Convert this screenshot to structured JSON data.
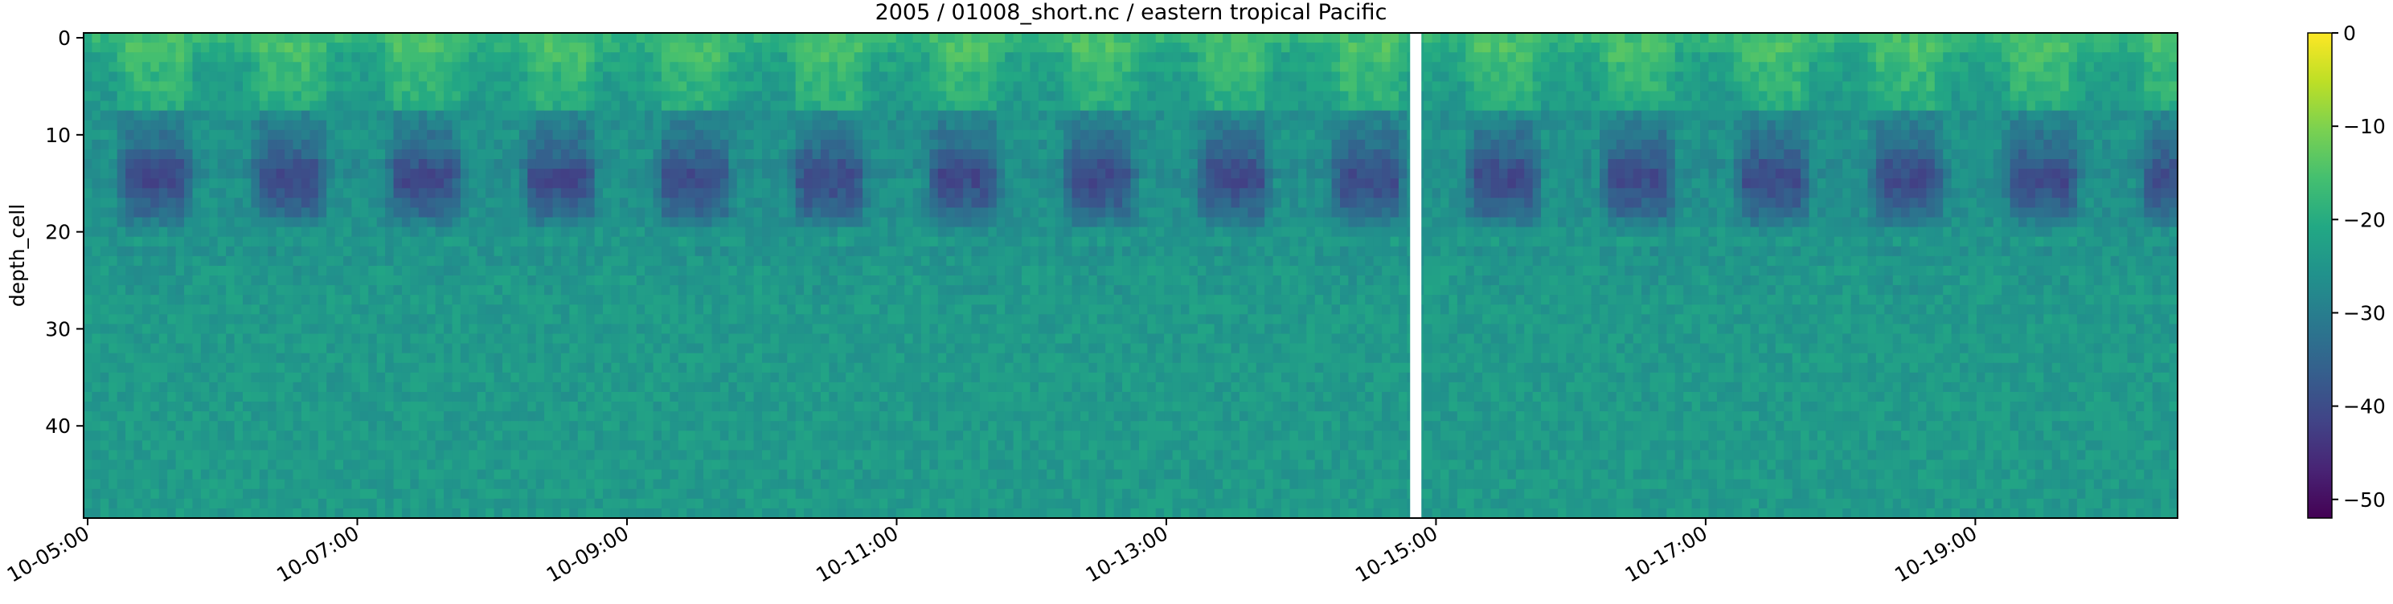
{
  "chart_data": {
    "type": "heatmap",
    "title": "2005 / 01008_short.nc / eastern tropical Pacific",
    "ylabel": "depth_cell",
    "xlabel": "",
    "x_range": [
      "10-04-23:30",
      "10-20-12:00"
    ],
    "y_range": [
      -0.5,
      49.5
    ],
    "y_inverted": true,
    "x_ticks": [
      "10-05:00",
      "10-07:00",
      "10-09:00",
      "10-11:00",
      "10-13:00",
      "10-15:00",
      "10-17:00",
      "10-19:00"
    ],
    "x_tick_days": [
      5,
      7,
      9,
      11,
      13,
      15,
      17,
      19
    ],
    "y_ticks": [
      0,
      10,
      20,
      30,
      40
    ],
    "colorbar": {
      "colormap": "viridis",
      "vmin": -52,
      "vmax": 0,
      "ticks": [
        0,
        -10,
        -20,
        -30,
        -40,
        -50
      ],
      "tick_labels": [
        "0",
        "−10",
        "−20",
        "−30",
        "−40",
        "−50"
      ]
    },
    "n_depth_cells": 50,
    "data_gap_day": 14.85,
    "description_of_values": "approximate backscatter values per depth_cell; values listed as typical depth profile (cells 0..49) for daytime and nighttime",
    "profile_day": [
      -16,
      -15,
      -16,
      -17,
      -18,
      -18,
      -19,
      -20,
      -28,
      -30,
      -32,
      -33,
      -35,
      -38,
      -40,
      -40,
      -38,
      -36,
      -34,
      -30,
      -26,
      -24,
      -26,
      -25,
      -25,
      -25,
      -25,
      -24,
      -24,
      -24,
      -24,
      -24,
      -24,
      -24,
      -24,
      -24,
      -24,
      -24,
      -24,
      -24,
      -24,
      -24,
      -24,
      -24,
      -24,
      -24,
      -24,
      -24,
      -24,
      -24
    ],
    "profile_night": [
      -18,
      -20,
      -22,
      -22,
      -23,
      -23,
      -24,
      -24,
      -26,
      -26,
      -25,
      -26,
      -26,
      -27,
      -27,
      -26,
      -26,
      -26,
      -26,
      -26,
      -25,
      -25,
      -25,
      -25,
      -24,
      -24,
      -24,
      -24,
      -24,
      -24,
      -24,
      -24,
      -24,
      -24,
      -24,
      -24,
      -24,
      -24,
      -24,
      -24,
      -24,
      -24,
      -24,
      -24,
      -24,
      -24,
      -24,
      -24,
      -24,
      -24
    ]
  }
}
